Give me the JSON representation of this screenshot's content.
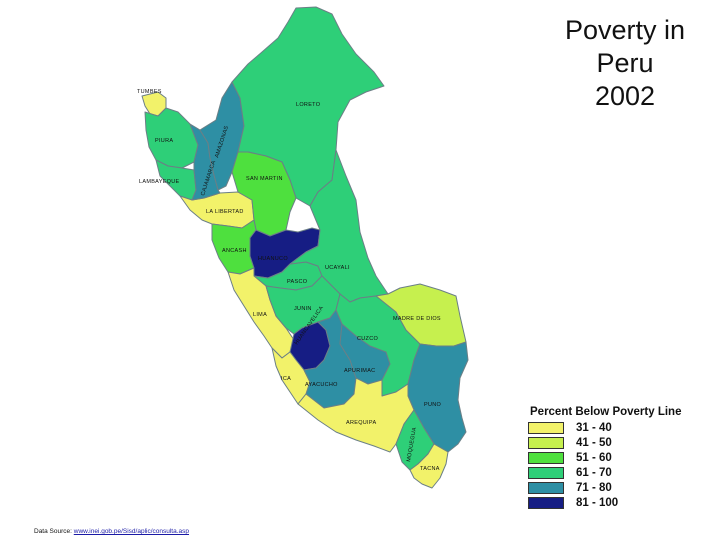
{
  "title": {
    "line1": "Poverty in",
    "line2": "Peru",
    "line3": "2002"
  },
  "legend": {
    "title": "Percent Below Poverty Line",
    "items": [
      {
        "label": "31 - 40",
        "color": "#f2f26a"
      },
      {
        "label": "41 - 50",
        "color": "#c6f04e"
      },
      {
        "label": "51 - 60",
        "color": "#4ee03e"
      },
      {
        "label": "61 - 70",
        "color": "#2ecf78"
      },
      {
        "label": "71 - 80",
        "color": "#2e8fa4"
      },
      {
        "label": "81 - 100",
        "color": "#161d84"
      }
    ]
  },
  "regions": [
    {
      "name": "TUMBES",
      "bracket": 0
    },
    {
      "name": "PIURA",
      "bracket": 3
    },
    {
      "name": "LAMBAYEQUE",
      "bracket": 3
    },
    {
      "name": "LA LIBERTAD",
      "bracket": 0
    },
    {
      "name": "CAJAMARCA",
      "bracket": 4
    },
    {
      "name": "AMAZONAS",
      "bracket": 4
    },
    {
      "name": "LORETO",
      "bracket": 3
    },
    {
      "name": "SAN MARTIN",
      "bracket": 2
    },
    {
      "name": "ANCASH",
      "bracket": 2
    },
    {
      "name": "HUANUCO",
      "bracket": 5
    },
    {
      "name": "PASCO",
      "bracket": 3
    },
    {
      "name": "UCAYALI",
      "bracket": 3
    },
    {
      "name": "LIMA",
      "bracket": 0
    },
    {
      "name": "JUNIN",
      "bracket": 3
    },
    {
      "name": "HUANCAVELICA",
      "bracket": 5
    },
    {
      "name": "ICA",
      "bracket": 0
    },
    {
      "name": "AYACUCHO",
      "bracket": 4
    },
    {
      "name": "APURIMAC",
      "bracket": 4
    },
    {
      "name": "CUZCO",
      "bracket": 3
    },
    {
      "name": "MADRE DE DIOS",
      "bracket": 1
    },
    {
      "name": "PUNO",
      "bracket": 4
    },
    {
      "name": "AREQUIPA",
      "bracket": 0
    },
    {
      "name": "MOQUEGUA",
      "bracket": 3
    },
    {
      "name": "TACNA",
      "bracket": 0
    }
  ],
  "source": {
    "prefix": "Data Source: ",
    "link": "www.inei.gob.pe/Sisd/aplic/consulta.asp"
  }
}
